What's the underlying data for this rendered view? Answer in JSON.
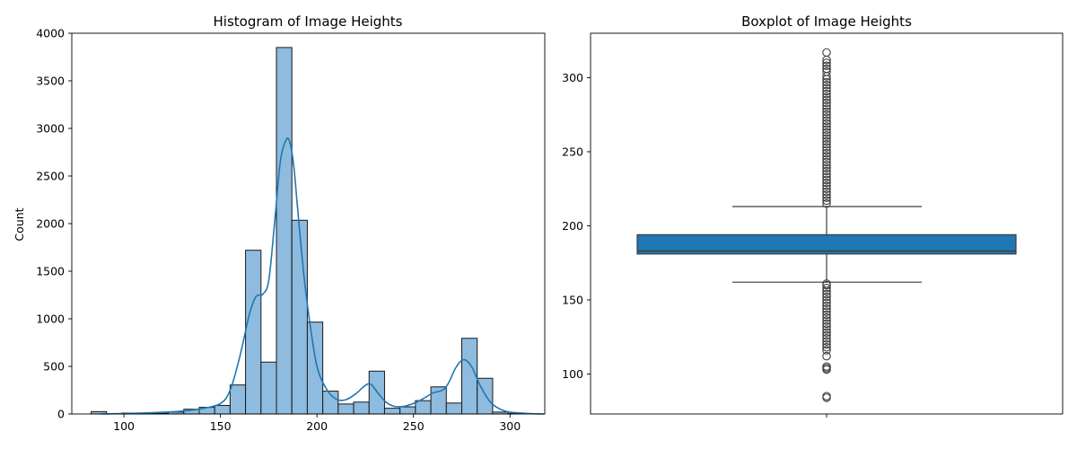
{
  "chart_data": [
    {
      "type": "bar",
      "title": "Histogram of Image Heights",
      "xlabel": "",
      "ylabel": "Count",
      "xlim": [
        73,
        318
      ],
      "ylim": [
        0,
        4000
      ],
      "xticks": [
        100,
        150,
        200,
        250,
        300
      ],
      "yticks": [
        0,
        500,
        1000,
        1500,
        2000,
        2500,
        3000,
        3500,
        4000
      ],
      "bins": [
        {
          "x0": 83,
          "x1": 91,
          "count": 25
        },
        {
          "x0": 91,
          "x1": 99,
          "count": 0
        },
        {
          "x0": 99,
          "x1": 107,
          "count": 10
        },
        {
          "x0": 107,
          "x1": 115,
          "count": 5
        },
        {
          "x0": 115,
          "x1": 123,
          "count": 8
        },
        {
          "x0": 123,
          "x1": 131,
          "count": 20
        },
        {
          "x0": 131,
          "x1": 139,
          "count": 50
        },
        {
          "x0": 139,
          "x1": 147,
          "count": 70
        },
        {
          "x0": 147,
          "x1": 155,
          "count": 90
        },
        {
          "x0": 155,
          "x1": 163,
          "count": 305
        },
        {
          "x0": 163,
          "x1": 171,
          "count": 1720
        },
        {
          "x0": 171,
          "x1": 179,
          "count": 545
        },
        {
          "x0": 179,
          "x1": 187,
          "count": 3850
        },
        {
          "x0": 187,
          "x1": 195,
          "count": 2035
        },
        {
          "x0": 195,
          "x1": 203,
          "count": 965
        },
        {
          "x0": 203,
          "x1": 211,
          "count": 240
        },
        {
          "x0": 211,
          "x1": 219,
          "count": 105
        },
        {
          "x0": 219,
          "x1": 227,
          "count": 125
        },
        {
          "x0": 227,
          "x1": 235,
          "count": 450
        },
        {
          "x0": 235,
          "x1": 243,
          "count": 60
        },
        {
          "x0": 243,
          "x1": 251,
          "count": 75
        },
        {
          "x0": 251,
          "x1": 259,
          "count": 140
        },
        {
          "x0": 259,
          "x1": 267,
          "count": 285
        },
        {
          "x0": 267,
          "x1": 275,
          "count": 115
        },
        {
          "x0": 275,
          "x1": 283,
          "count": 795
        },
        {
          "x0": 283,
          "x1": 291,
          "count": 375
        },
        {
          "x0": 291,
          "x1": 299,
          "count": 20
        },
        {
          "x0": 299,
          "x1": 307,
          "count": 5
        }
      ],
      "kde": {
        "x": [
          88,
          100,
          110,
          120,
          130,
          140,
          150,
          155,
          160,
          165,
          168,
          170,
          172,
          175,
          178,
          181,
          184,
          186,
          188,
          190,
          193,
          196,
          200,
          205,
          210,
          215,
          220,
          225,
          228,
          232,
          236,
          240,
          245,
          250,
          255,
          260,
          265,
          268,
          272,
          276,
          280,
          285,
          290,
          295,
          300,
          310,
          318
        ],
        "y": [
          0,
          5,
          10,
          18,
          30,
          55,
          110,
          250,
          600,
          1050,
          1220,
          1250,
          1260,
          1400,
          2000,
          2650,
          2880,
          2850,
          2600,
          2150,
          1500,
          1000,
          500,
          260,
          155,
          150,
          210,
          300,
          310,
          210,
          120,
          80,
          80,
          110,
          160,
          220,
          250,
          320,
          490,
          570,
          500,
          280,
          120,
          50,
          20,
          5,
          0
        ]
      },
      "colors": {
        "bar_fill": "#8ebbde",
        "bar_edge": "#1a1a1a",
        "kde_line": "#1f77b4"
      }
    },
    {
      "type": "box",
      "title": "Boxplot of Image Heights",
      "xlabel": "",
      "ylabel": "",
      "ylim": [
        73,
        330
      ],
      "yticks": [
        100,
        150,
        200,
        250,
        300
      ],
      "q1": 181,
      "median": 183,
      "q3": 194,
      "whisker_low": 162,
      "whisker_high": 213,
      "outliers_low": [
        84,
        85,
        103,
        104,
        105,
        112,
        116,
        118,
        120,
        122,
        124,
        126,
        128,
        130,
        132,
        134,
        136,
        138,
        140,
        142,
        144,
        146,
        148,
        150,
        152,
        154,
        156,
        158,
        160,
        161
      ],
      "outliers_high": [
        215,
        217,
        219,
        221,
        223,
        225,
        227,
        229,
        231,
        233,
        235,
        237,
        239,
        241,
        243,
        245,
        247,
        249,
        251,
        253,
        255,
        257,
        259,
        261,
        263,
        265,
        267,
        269,
        271,
        273,
        275,
        277,
        279,
        281,
        283,
        285,
        287,
        289,
        291,
        293,
        295,
        297,
        299,
        301,
        304,
        306,
        308,
        310,
        312,
        317
      ],
      "colors": {
        "box_fill": "#1f77b4",
        "line": "#3d3d3d"
      }
    }
  ]
}
